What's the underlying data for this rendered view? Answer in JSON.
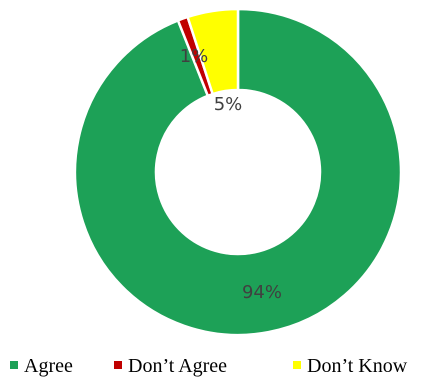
{
  "chart_data": {
    "type": "pie",
    "variant": "donut",
    "categories": [
      "Agree",
      "Don’t Agree",
      "Don’t Know"
    ],
    "values": [
      94,
      1,
      5
    ],
    "data_labels": [
      "94%",
      "1%",
      "5%"
    ],
    "colors": [
      "#1da157",
      "#c00000",
      "#ffff00"
    ],
    "slice_border_color": "#ffffff",
    "legend_position": "bottom",
    "title": ""
  }
}
